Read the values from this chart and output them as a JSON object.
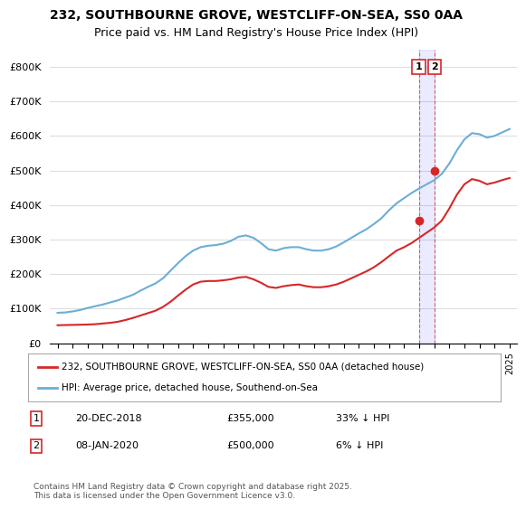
{
  "title": "232, SOUTHBOURNE GROVE, WESTCLIFF-ON-SEA, SS0 0AA",
  "subtitle": "Price paid vs. HM Land Registry's House Price Index (HPI)",
  "ylabel": "",
  "legend_line1": "232, SOUTHBOURNE GROVE, WESTCLIFF-ON-SEA, SS0 0AA (detached house)",
  "legend_line2": "HPI: Average price, detached house, Southend-on-Sea",
  "transaction1_label": "1",
  "transaction1_date": "20-DEC-2018",
  "transaction1_price": "£355,000",
  "transaction1_hpi": "33% ↓ HPI",
  "transaction2_label": "2",
  "transaction2_date": "08-JAN-2020",
  "transaction2_price": "£500,000",
  "transaction2_hpi": "6% ↓ HPI",
  "footer": "Contains HM Land Registry data © Crown copyright and database right 2025.\nThis data is licensed under the Open Government Licence v3.0.",
  "hpi_color": "#6baed6",
  "price_color": "#d62728",
  "vline_color": "#d62728",
  "vline_style": "--",
  "background_color": "#ffffff",
  "grid_color": "#dddddd",
  "ylim": [
    0,
    850000
  ],
  "yticks": [
    0,
    100000,
    200000,
    300000,
    400000,
    500000,
    600000,
    700000,
    800000
  ],
  "ytick_labels": [
    "£0",
    "£100K",
    "£200K",
    "£300K",
    "£400K",
    "£500K",
    "£600K",
    "£700K",
    "£800K"
  ],
  "xlim_start": 1994.5,
  "xlim_end": 2025.5,
  "transaction1_x": 2018.97,
  "transaction1_y": 355000,
  "transaction2_x": 2020.03,
  "transaction2_y": 500000,
  "hpi_years": [
    1995,
    1995.5,
    1996,
    1996.5,
    1997,
    1997.5,
    1998,
    1998.5,
    1999,
    1999.5,
    2000,
    2000.5,
    2001,
    2001.5,
    2002,
    2002.5,
    2003,
    2003.5,
    2004,
    2004.5,
    2005,
    2005.5,
    2006,
    2006.5,
    2007,
    2007.5,
    2008,
    2008.5,
    2009,
    2009.5,
    2010,
    2010.5,
    2011,
    2011.5,
    2012,
    2012.5,
    2013,
    2013.5,
    2014,
    2014.5,
    2015,
    2015.5,
    2016,
    2016.5,
    2017,
    2017.5,
    2018,
    2018.5,
    2019,
    2019.5,
    2020,
    2020.5,
    2021,
    2021.5,
    2022,
    2022.5,
    2023,
    2023.5,
    2024,
    2024.5,
    2025
  ],
  "hpi_values": [
    88000,
    89000,
    92000,
    96000,
    102000,
    107000,
    112000,
    118000,
    124000,
    132000,
    140000,
    152000,
    163000,
    173000,
    188000,
    210000,
    232000,
    252000,
    268000,
    278000,
    282000,
    284000,
    288000,
    296000,
    308000,
    312000,
    305000,
    290000,
    272000,
    268000,
    275000,
    278000,
    278000,
    272000,
    268000,
    268000,
    272000,
    280000,
    292000,
    305000,
    318000,
    330000,
    345000,
    362000,
    385000,
    405000,
    420000,
    435000,
    448000,
    460000,
    472000,
    490000,
    520000,
    558000,
    590000,
    608000,
    605000,
    595000,
    600000,
    610000,
    620000
  ],
  "price_years": [
    1995,
    1995.5,
    1996,
    1996.5,
    1997,
    1997.5,
    1998,
    1998.5,
    1999,
    1999.5,
    2000,
    2000.5,
    2001,
    2001.5,
    2002,
    2002.5,
    2003,
    2003.5,
    2004,
    2004.5,
    2005,
    2005.5,
    2006,
    2006.5,
    2007,
    2007.5,
    2008,
    2008.5,
    2009,
    2009.5,
    2010,
    2010.5,
    2011,
    2011.5,
    2012,
    2012.5,
    2013,
    2013.5,
    2014,
    2014.5,
    2015,
    2015.5,
    2016,
    2016.5,
    2017,
    2017.5,
    2018,
    2018.5,
    2019,
    2019.5,
    2020,
    2020.5,
    2021,
    2021.5,
    2022,
    2022.5,
    2023,
    2023.5,
    2024,
    2024.5,
    2025
  ],
  "price_values": [
    52000,
    52500,
    53000,
    53500,
    54000,
    55000,
    57000,
    59000,
    62000,
    67000,
    73000,
    80000,
    87000,
    94000,
    105000,
    120000,
    138000,
    155000,
    170000,
    178000,
    180000,
    180000,
    182000,
    185000,
    190000,
    192000,
    185000,
    175000,
    163000,
    160000,
    165000,
    168000,
    170000,
    165000,
    162000,
    162000,
    165000,
    170000,
    178000,
    188000,
    198000,
    208000,
    220000,
    235000,
    252000,
    268000,
    278000,
    290000,
    305000,
    320000,
    335000,
    355000,
    390000,
    430000,
    460000,
    475000,
    470000,
    460000,
    465000,
    472000,
    478000
  ]
}
